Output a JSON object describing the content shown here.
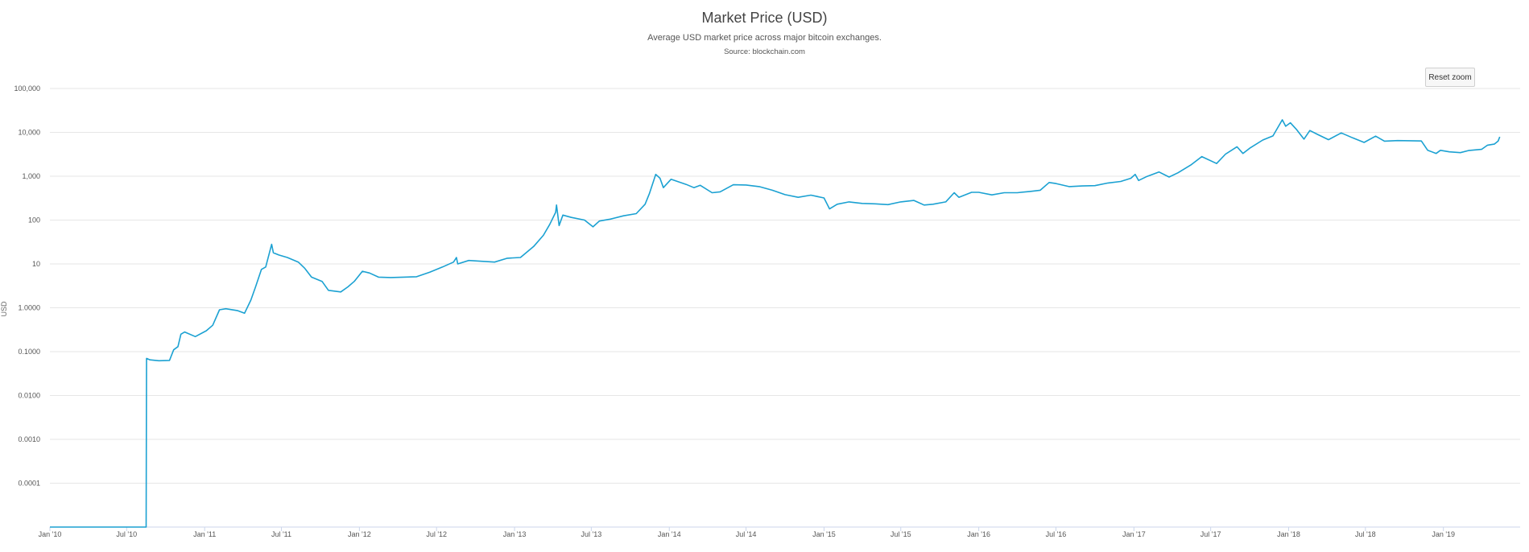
{
  "reset_zoom_label": "Reset zoom",
  "chart_data": {
    "type": "line",
    "title": "Market Price (USD)",
    "subtitle": "Average USD market price across major bitcoin exchanges.",
    "source": "Source: blockchain.com",
    "ylabel": "USD",
    "xlabel": "",
    "y_scale": "log",
    "ylim": [
      1e-05,
      100000
    ],
    "xlim": [
      "2010-01-01",
      "2019-07-01"
    ],
    "grid": true,
    "line_color": "#1ba1d2",
    "y_ticks": [
      {
        "value": 100000,
        "label": "100,000"
      },
      {
        "value": 10000,
        "label": "10,000"
      },
      {
        "value": 1000,
        "label": "1,000"
      },
      {
        "value": 100,
        "label": "100"
      },
      {
        "value": 10,
        "label": "10"
      },
      {
        "value": 1,
        "label": "1.0000"
      },
      {
        "value": 0.1,
        "label": "0.1000"
      },
      {
        "value": 0.01,
        "label": "0.0100"
      },
      {
        "value": 0.001,
        "label": "0.0010"
      },
      {
        "value": 0.0001,
        "label": "0.0001"
      }
    ],
    "x_ticks": [
      {
        "value": "2010-01-01",
        "label": "Jan '10"
      },
      {
        "value": "2010-07-01",
        "label": "Jul '10"
      },
      {
        "value": "2011-01-01",
        "label": "Jan '11"
      },
      {
        "value": "2011-07-01",
        "label": "Jul '11"
      },
      {
        "value": "2012-01-01",
        "label": "Jan '12"
      },
      {
        "value": "2012-07-01",
        "label": "Jul '12"
      },
      {
        "value": "2013-01-01",
        "label": "Jan '13"
      },
      {
        "value": "2013-07-01",
        "label": "Jul '13"
      },
      {
        "value": "2014-01-01",
        "label": "Jan '14"
      },
      {
        "value": "2014-07-01",
        "label": "Jul '14"
      },
      {
        "value": "2015-01-01",
        "label": "Jan '15"
      },
      {
        "value": "2015-07-01",
        "label": "Jul '15"
      },
      {
        "value": "2016-01-01",
        "label": "Jan '16"
      },
      {
        "value": "2016-07-01",
        "label": "Jul '16"
      },
      {
        "value": "2017-01-01",
        "label": "Jan '17"
      },
      {
        "value": "2017-07-01",
        "label": "Jul '17"
      },
      {
        "value": "2018-01-01",
        "label": "Jan '18"
      },
      {
        "value": "2018-07-01",
        "label": "Jul '18"
      },
      {
        "value": "2019-01-01",
        "label": "Jan '19"
      }
    ],
    "series": [
      {
        "points": [
          [
            "2010-01-01",
            1e-05
          ],
          [
            "2010-08-16",
            1e-05
          ],
          [
            "2010-08-17",
            0.07
          ],
          [
            "2010-08-25",
            0.065
          ],
          [
            "2010-09-15",
            0.062
          ],
          [
            "2010-10-10",
            0.063
          ],
          [
            "2010-10-20",
            0.11
          ],
          [
            "2010-10-30",
            0.13
          ],
          [
            "2010-11-06",
            0.25
          ],
          [
            "2010-11-15",
            0.28
          ],
          [
            "2010-12-10",
            0.22
          ],
          [
            "2011-01-05",
            0.3
          ],
          [
            "2011-01-20",
            0.4
          ],
          [
            "2011-02-05",
            0.9
          ],
          [
            "2011-02-20",
            0.95
          ],
          [
            "2011-03-20",
            0.86
          ],
          [
            "2011-04-05",
            0.75
          ],
          [
            "2011-04-20",
            1.5
          ],
          [
            "2011-05-01",
            3.0
          ],
          [
            "2011-05-15",
            7.5
          ],
          [
            "2011-05-25",
            8.5
          ],
          [
            "2011-06-08",
            28
          ],
          [
            "2011-06-12",
            18
          ],
          [
            "2011-06-25",
            16
          ],
          [
            "2011-07-15",
            14
          ],
          [
            "2011-08-10",
            11
          ],
          [
            "2011-08-25",
            8
          ],
          [
            "2011-09-10",
            5
          ],
          [
            "2011-10-05",
            4
          ],
          [
            "2011-10-20",
            2.5
          ],
          [
            "2011-11-18",
            2.3
          ],
          [
            "2011-12-05",
            3.0
          ],
          [
            "2011-12-20",
            4.0
          ],
          [
            "2012-01-08",
            6.8
          ],
          [
            "2012-01-25",
            6.2
          ],
          [
            "2012-02-15",
            5.0
          ],
          [
            "2012-03-15",
            4.9
          ],
          [
            "2012-04-15",
            5.0
          ],
          [
            "2012-05-15",
            5.1
          ],
          [
            "2012-06-15",
            6.5
          ],
          [
            "2012-07-15",
            8.5
          ],
          [
            "2012-08-10",
            11
          ],
          [
            "2012-08-17",
            14
          ],
          [
            "2012-08-20",
            10
          ],
          [
            "2012-09-15",
            12
          ],
          [
            "2012-10-15",
            11.5
          ],
          [
            "2012-11-15",
            11
          ],
          [
            "2012-12-15",
            13.5
          ],
          [
            "2013-01-15",
            14
          ],
          [
            "2013-02-15",
            25
          ],
          [
            "2013-03-10",
            45
          ],
          [
            "2013-03-25",
            80
          ],
          [
            "2013-04-08",
            150
          ],
          [
            "2013-04-10",
            220
          ],
          [
            "2013-04-16",
            75
          ],
          [
            "2013-04-25",
            130
          ],
          [
            "2013-05-15",
            115
          ],
          [
            "2013-06-15",
            100
          ],
          [
            "2013-07-05",
            70
          ],
          [
            "2013-07-20",
            95
          ],
          [
            "2013-08-15",
            105
          ],
          [
            "2013-09-15",
            125
          ],
          [
            "2013-10-15",
            140
          ],
          [
            "2013-11-05",
            230
          ],
          [
            "2013-11-15",
            400
          ],
          [
            "2013-11-30",
            1100
          ],
          [
            "2013-12-10",
            900
          ],
          [
            "2013-12-18",
            550
          ],
          [
            "2014-01-05",
            850
          ],
          [
            "2014-02-10",
            650
          ],
          [
            "2014-02-28",
            550
          ],
          [
            "2014-03-15",
            620
          ],
          [
            "2014-04-12",
            420
          ],
          [
            "2014-05-01",
            440
          ],
          [
            "2014-06-01",
            640
          ],
          [
            "2014-07-01",
            630
          ],
          [
            "2014-08-01",
            580
          ],
          [
            "2014-09-01",
            480
          ],
          [
            "2014-10-01",
            380
          ],
          [
            "2014-11-01",
            330
          ],
          [
            "2014-12-01",
            370
          ],
          [
            "2015-01-01",
            320
          ],
          [
            "2015-01-14",
            180
          ],
          [
            "2015-02-01",
            230
          ],
          [
            "2015-03-01",
            260
          ],
          [
            "2015-04-01",
            240
          ],
          [
            "2015-05-01",
            235
          ],
          [
            "2015-06-01",
            225
          ],
          [
            "2015-07-01",
            260
          ],
          [
            "2015-08-01",
            280
          ],
          [
            "2015-08-25",
            220
          ],
          [
            "2015-09-15",
            230
          ],
          [
            "2015-10-15",
            260
          ],
          [
            "2015-11-04",
            420
          ],
          [
            "2015-11-15",
            330
          ],
          [
            "2015-12-15",
            430
          ],
          [
            "2016-01-01",
            430
          ],
          [
            "2016-02-01",
            375
          ],
          [
            "2016-03-01",
            420
          ],
          [
            "2016-04-01",
            420
          ],
          [
            "2016-05-01",
            450
          ],
          [
            "2016-05-25",
            480
          ],
          [
            "2016-06-15",
            720
          ],
          [
            "2016-07-01",
            680
          ],
          [
            "2016-08-01",
            580
          ],
          [
            "2016-09-01",
            600
          ],
          [
            "2016-10-01",
            610
          ],
          [
            "2016-11-01",
            700
          ],
          [
            "2016-12-01",
            760
          ],
          [
            "2016-12-25",
            900
          ],
          [
            "2017-01-04",
            1100
          ],
          [
            "2017-01-12",
            800
          ],
          [
            "2017-02-01",
            990
          ],
          [
            "2017-03-01",
            1250
          ],
          [
            "2017-03-25",
            960
          ],
          [
            "2017-04-15",
            1200
          ],
          [
            "2017-05-15",
            1800
          ],
          [
            "2017-06-10",
            2800
          ],
          [
            "2017-07-15",
            1950
          ],
          [
            "2017-08-05",
            3200
          ],
          [
            "2017-09-01",
            4700
          ],
          [
            "2017-09-15",
            3300
          ],
          [
            "2017-10-01",
            4350
          ],
          [
            "2017-11-01",
            6700
          ],
          [
            "2017-11-25",
            8300
          ],
          [
            "2017-12-17",
            19300
          ],
          [
            "2017-12-25",
            13800
          ],
          [
            "2018-01-05",
            16500
          ],
          [
            "2018-01-20",
            11500
          ],
          [
            "2018-02-06",
            7000
          ],
          [
            "2018-02-20",
            11000
          ],
          [
            "2018-03-10",
            9000
          ],
          [
            "2018-04-05",
            6800
          ],
          [
            "2018-05-05",
            9700
          ],
          [
            "2018-06-01",
            7500
          ],
          [
            "2018-06-28",
            5900
          ],
          [
            "2018-07-25",
            8200
          ],
          [
            "2018-08-15",
            6300
          ],
          [
            "2018-09-15",
            6500
          ],
          [
            "2018-10-15",
            6450
          ],
          [
            "2018-11-10",
            6350
          ],
          [
            "2018-11-25",
            3900
          ],
          [
            "2018-12-15",
            3300
          ],
          [
            "2018-12-25",
            3900
          ],
          [
            "2019-01-15",
            3600
          ],
          [
            "2019-02-10",
            3450
          ],
          [
            "2019-03-01",
            3850
          ],
          [
            "2019-04-01",
            4100
          ],
          [
            "2019-04-15",
            5100
          ],
          [
            "2019-05-01",
            5400
          ],
          [
            "2019-05-10",
            6300
          ],
          [
            "2019-05-14",
            7900
          ]
        ]
      }
    ]
  }
}
